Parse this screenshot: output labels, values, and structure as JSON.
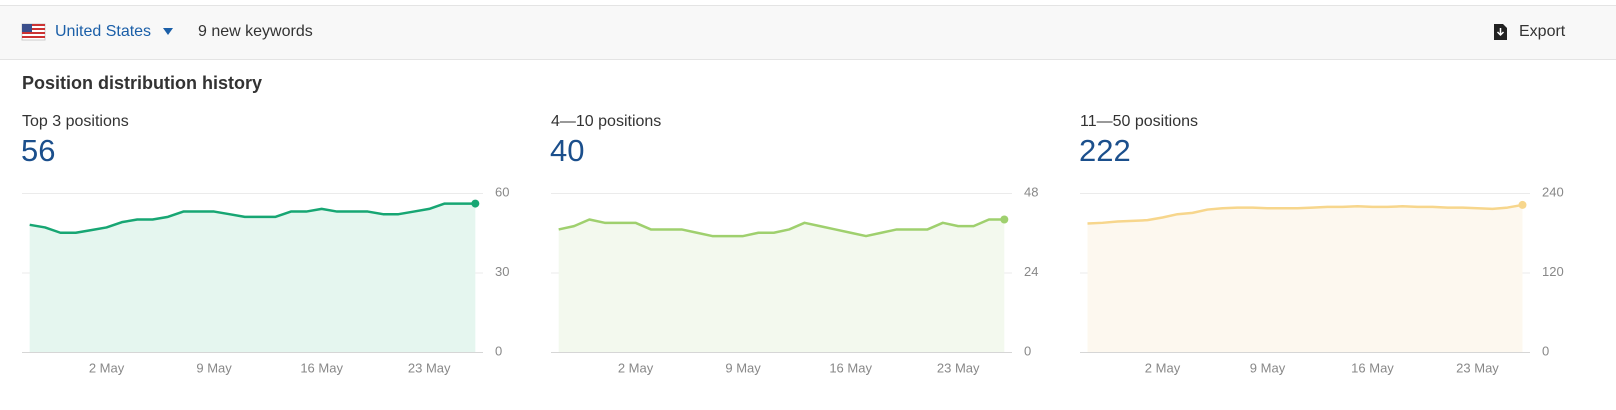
{
  "toolbar": {
    "country": "United States",
    "new_keywords": "9 new keywords",
    "export": "Export"
  },
  "section_title": "Position distribution history",
  "chart_data": [
    {
      "type": "area",
      "title": "Top 3 positions",
      "current": 56,
      "color": "#17a673",
      "fill_color": "#e5f6ef",
      "categories": [
        null,
        null,
        null,
        null,
        null,
        "2 May",
        null,
        null,
        null,
        null,
        null,
        null,
        "9 May",
        null,
        null,
        null,
        null,
        null,
        null,
        "16 May",
        null,
        null,
        null,
        null,
        null,
        null,
        "23 May",
        null,
        null,
        null
      ],
      "values": [
        48,
        47,
        45,
        45,
        46,
        47,
        49,
        50,
        50,
        51,
        53,
        53,
        53,
        52,
        51,
        51,
        51,
        53,
        53,
        54,
        53,
        53,
        53,
        52,
        52,
        53,
        54,
        56,
        56,
        56
      ],
      "ylim": [
        0,
        60
      ],
      "yticks": [
        0,
        30,
        60
      ],
      "grid": true
    },
    {
      "type": "area",
      "title": "4—10 positions",
      "current": 40,
      "color": "#9fd06e",
      "fill_color": "#f3f9ee",
      "categories": [
        null,
        null,
        null,
        null,
        null,
        "2 May",
        null,
        null,
        null,
        null,
        null,
        null,
        "9 May",
        null,
        null,
        null,
        null,
        null,
        null,
        "16 May",
        null,
        null,
        null,
        null,
        null,
        null,
        "23 May",
        null,
        null,
        null
      ],
      "values": [
        37,
        38,
        40,
        39,
        39,
        39,
        37,
        37,
        37,
        36,
        35,
        35,
        35,
        36,
        36,
        37,
        39,
        38,
        37,
        36,
        35,
        36,
        37,
        37,
        37,
        39,
        38,
        38,
        40,
        40
      ],
      "ylim": [
        0,
        48
      ],
      "yticks": [
        0,
        24,
        48
      ],
      "grid": true
    },
    {
      "type": "area",
      "title": "11—50 positions",
      "current": 222,
      "color": "#f7d68c",
      "fill_color": "#fdf8ef",
      "categories": [
        null,
        null,
        null,
        null,
        null,
        "2 May",
        null,
        null,
        null,
        null,
        null,
        null,
        "9 May",
        null,
        null,
        null,
        null,
        null,
        null,
        "16 May",
        null,
        null,
        null,
        null,
        null,
        null,
        "23 May",
        null,
        null,
        null
      ],
      "values": [
        194,
        195,
        197,
        198,
        199,
        203,
        208,
        210,
        215,
        217,
        218,
        218,
        217,
        217,
        217,
        218,
        219,
        219,
        220,
        219,
        219,
        220,
        219,
        219,
        218,
        218,
        217,
        216,
        218,
        222
      ],
      "ylim": [
        0,
        240
      ],
      "yticks": [
        0,
        120,
        240
      ],
      "grid": true
    }
  ]
}
